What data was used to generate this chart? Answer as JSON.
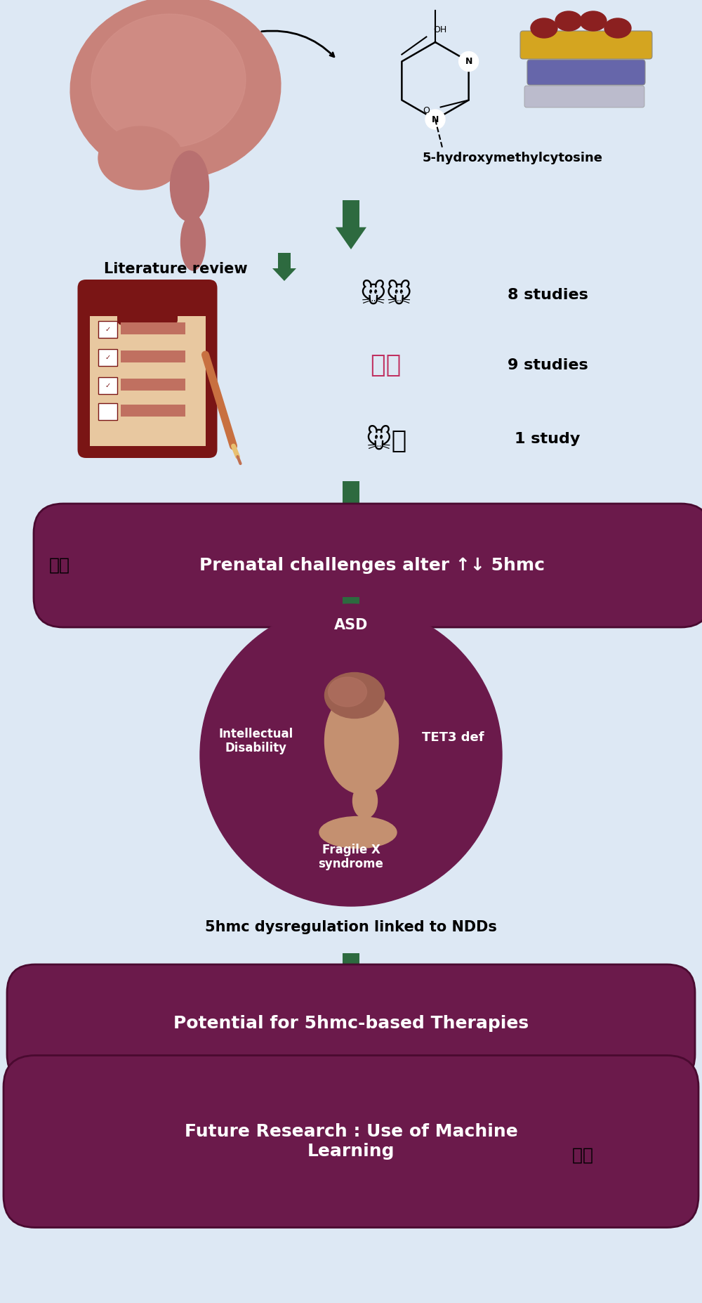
{
  "bg_color": "#dde8f4",
  "purple_dark": "#6b1a4b",
  "green_arrow": "#2d6a3f",
  "title_5hmc": "5-hydroxymethylcytosine",
  "lit_review_text": "Literature review",
  "studies": [
    "8 studies",
    "9 studies",
    "1 study"
  ],
  "box1_text": "Prenatal challenges alter ↑↓ 5hmc",
  "circle_labels": [
    "ASD",
    "Intellectual\nDisability",
    "TET3 def",
    "Fragile X\nsyndrome"
  ],
  "caption_ndd": "5hmc dysregulation linked to NDDs",
  "box2_text": "Potential for 5hmc-based Therapies",
  "box3_text": "Future Research : Use of Machine\nLearning",
  "fig_width": 10.0,
  "fig_height": 18.55,
  "brain_color": "#c8827a",
  "brain_detail": "#d4928a",
  "stem_color": "#b87070",
  "histone_red": "#8b2020",
  "histone_gold": "#d4a520",
  "histone_blue": "#6666aa",
  "clipboard_dark": "#7a1515",
  "clipboard_mid": "#c07060",
  "pencil_color": "#c87040",
  "head_skin": "#c49070",
  "head_brain_color": "#9c6050"
}
